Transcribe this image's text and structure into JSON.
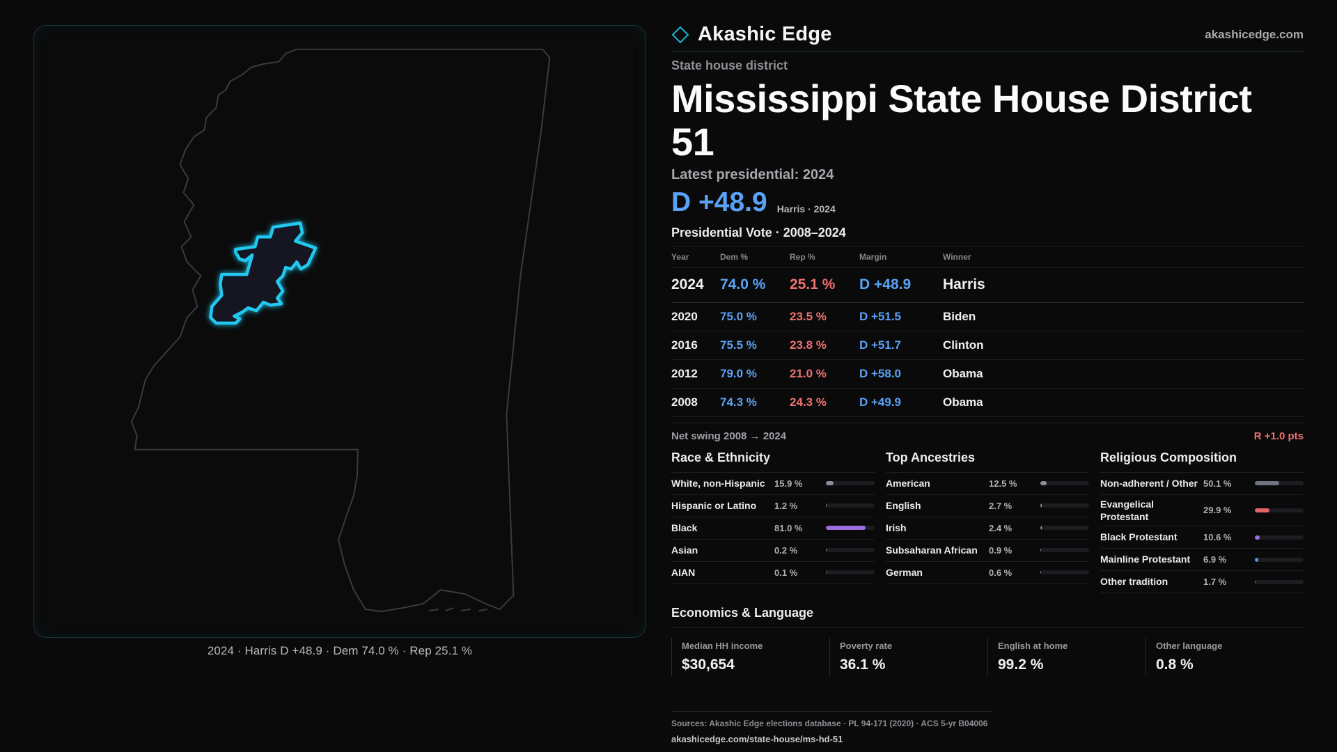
{
  "brand": {
    "name": "Akashic Edge",
    "url": "akashicedge.com"
  },
  "district": {
    "kind": "State house district",
    "title": "Mississippi State House District 51",
    "latest_label": "Latest presidential: 2024",
    "margin": "D +48.9",
    "margin_note": "Harris · 2024"
  },
  "map": {
    "caption": "2024 · Harris D +48.9 · Dem 74.0 % · Rep 25.1 %"
  },
  "presidential": {
    "heading": "Presidential Vote · 2008–2024",
    "columns": [
      "Year",
      "Dem %",
      "Rep %",
      "Margin",
      "Winner"
    ],
    "rows": [
      {
        "year": "2024",
        "dem": "74.0 %",
        "rep": "25.1 %",
        "margin": "D +48.9",
        "winner": "Harris"
      },
      {
        "year": "2020",
        "dem": "75.0 %",
        "rep": "23.5 %",
        "margin": "D +51.5",
        "winner": "Biden"
      },
      {
        "year": "2016",
        "dem": "75.5 %",
        "rep": "23.8 %",
        "margin": "D +51.7",
        "winner": "Clinton"
      },
      {
        "year": "2012",
        "dem": "79.0 %",
        "rep": "21.0 %",
        "margin": "D +58.0",
        "winner": "Obama"
      },
      {
        "year": "2008",
        "dem": "74.3 %",
        "rep": "24.3 %",
        "margin": "D +49.9",
        "winner": "Obama"
      }
    ],
    "swing_label": "Net swing 2008 → 2024",
    "swing_value": "R +1.0 pts"
  },
  "race": {
    "heading": "Race & Ethnicity",
    "items": [
      {
        "label": "White, non-Hispanic",
        "value": "15.9 %",
        "pct": 15.9,
        "color": "#8a8f9c"
      },
      {
        "label": "Hispanic or Latino",
        "value": "1.2 %",
        "pct": 1.2,
        "color": "#c9a048"
      },
      {
        "label": "Black",
        "value": "81.0 %",
        "pct": 81.0,
        "color": "#9a6fe0"
      },
      {
        "label": "Asian",
        "value": "0.2 %",
        "pct": 0.2,
        "color": "#4fb0a0"
      },
      {
        "label": "AIAN",
        "value": "0.1 %",
        "pct": 0.1,
        "color": "#c06a6a"
      }
    ]
  },
  "ancestry": {
    "heading": "Top Ancestries",
    "items": [
      {
        "label": "American",
        "value": "12.5 %",
        "pct": 12.5,
        "color": "#8a8f9c"
      },
      {
        "label": "English",
        "value": "2.7 %",
        "pct": 2.7,
        "color": "#8a8f9c"
      },
      {
        "label": "Irish",
        "value": "2.4 %",
        "pct": 2.4,
        "color": "#8a8f9c"
      },
      {
        "label": "Subsaharan African",
        "value": "0.9 %",
        "pct": 0.9,
        "color": "#8a8f9c"
      },
      {
        "label": "German",
        "value": "0.6 %",
        "pct": 0.6,
        "color": "#8a8f9c"
      }
    ]
  },
  "religion": {
    "heading": "Religious Composition",
    "items": [
      {
        "label": "Non-adherent / Other",
        "value": "50.1 %",
        "pct": 50.1,
        "color": "#6e7482"
      },
      {
        "label": "Evangelical Protestant",
        "value": "29.9 %",
        "pct": 29.9,
        "color": "#e06464"
      },
      {
        "label": "Black Protestant",
        "value": "10.6 %",
        "pct": 10.6,
        "color": "#9a6fe0"
      },
      {
        "label": "Mainline Protestant",
        "value": "6.9 %",
        "pct": 6.9,
        "color": "#5a8ef0"
      },
      {
        "label": "Other tradition",
        "value": "1.7 %",
        "pct": 1.7,
        "color": "#8a8f9c"
      }
    ]
  },
  "economics": {
    "heading": "Economics & Language",
    "stats": [
      {
        "label": "Median HH income",
        "value": "$30,654"
      },
      {
        "label": "Poverty rate",
        "value": "36.1 %"
      },
      {
        "label": "English at home",
        "value": "99.2 %"
      },
      {
        "label": "Other language",
        "value": "0.8 %"
      }
    ]
  },
  "sources": {
    "line": "Sources: Akashic Edge elections database · PL 94-171 (2020) · ACS 5-yr B04006",
    "link": "akashicedge.com/state-house/ms-hd-51"
  },
  "colors": {
    "dem": "#5aa2f5",
    "rep": "#f07270",
    "district_outline": "#20c8ef",
    "state_outline": "#3b3b40"
  }
}
